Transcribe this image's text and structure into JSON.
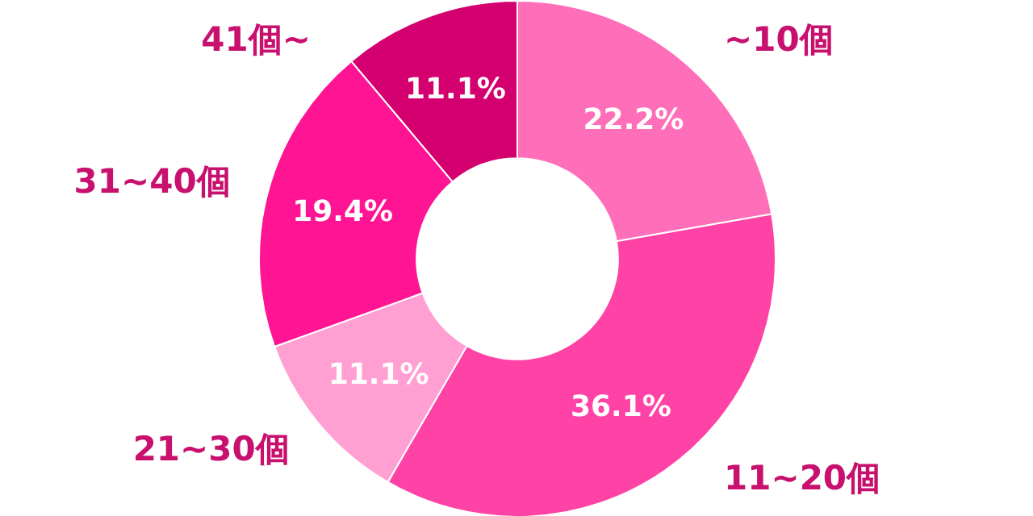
{
  "chart_data": {
    "type": "donut",
    "categories": [
      "~10個",
      "11~20個",
      "21~30個",
      "31~40個",
      "41個~"
    ],
    "values": [
      22.2,
      36.1,
      11.1,
      19.4,
      11.1
    ],
    "colors": [
      "#ff6eb9",
      "#ff42a5",
      "#ff9fd2",
      "#ff1493",
      "#d4006f"
    ],
    "value_labels": [
      "22.2%",
      "36.1%",
      "11.1%",
      "19.4%",
      "11.1%"
    ]
  }
}
